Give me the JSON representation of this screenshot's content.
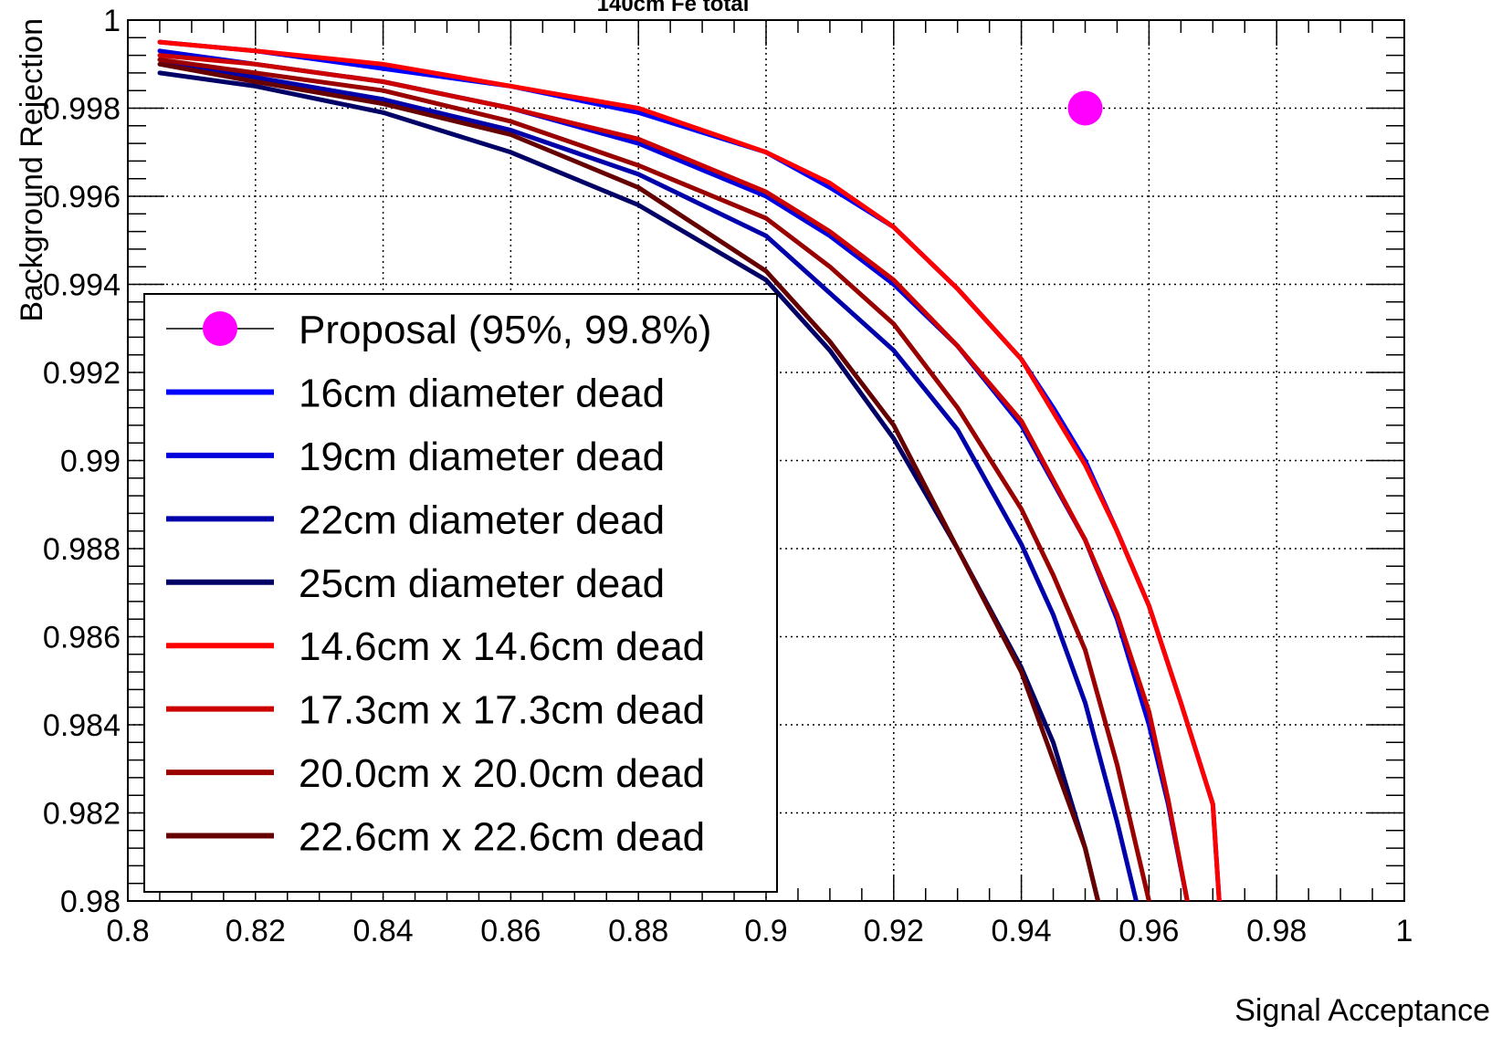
{
  "chart_data": {
    "type": "line",
    "title": "140cm Fe total",
    "xlabel": "Signal Acceptance",
    "ylabel": "Background Rejection",
    "xlim": [
      0.8,
      1.0
    ],
    "ylim": [
      0.98,
      1.0
    ],
    "grid": true,
    "legend_position": "bottom-left",
    "x_ticks": [
      {
        "value": 0.8,
        "label": "0.8"
      },
      {
        "value": 0.82,
        "label": "0.82"
      },
      {
        "value": 0.84,
        "label": "0.84"
      },
      {
        "value": 0.86,
        "label": "0.86"
      },
      {
        "value": 0.88,
        "label": "0.88"
      },
      {
        "value": 0.9,
        "label": "0.9"
      },
      {
        "value": 0.92,
        "label": "0.92"
      },
      {
        "value": 0.94,
        "label": "0.94"
      },
      {
        "value": 0.96,
        "label": "0.96"
      },
      {
        "value": 0.98,
        "label": "0.98"
      },
      {
        "value": 1.0,
        "label": "1"
      }
    ],
    "y_ticks": [
      {
        "value": 0.98,
        "label": "0.98"
      },
      {
        "value": 0.982,
        "label": "0.982"
      },
      {
        "value": 0.984,
        "label": "0.984"
      },
      {
        "value": 0.986,
        "label": "0.986"
      },
      {
        "value": 0.988,
        "label": "0.988"
      },
      {
        "value": 0.99,
        "label": "0.99"
      },
      {
        "value": 0.992,
        "label": "0.992"
      },
      {
        "value": 0.994,
        "label": "0.994"
      },
      {
        "value": 0.996,
        "label": "0.996"
      },
      {
        "value": 0.998,
        "label": "0.998"
      },
      {
        "value": 1.0,
        "label": "1"
      }
    ],
    "points": [
      {
        "name": "Proposal (95%, 99.8%)",
        "x": 0.95,
        "y": 0.998,
        "color": "#ff00ff"
      }
    ],
    "series": [
      {
        "name": "16cm diameter dead",
        "color": "#0000ff",
        "x": [
          0.805,
          0.82,
          0.84,
          0.86,
          0.88,
          0.9,
          0.91,
          0.92,
          0.93,
          0.94,
          0.945,
          0.95,
          0.955,
          0.96,
          0.965,
          0.97,
          0.971
        ],
        "y": [
          0.9995,
          0.9993,
          0.9989,
          0.9985,
          0.9979,
          0.997,
          0.9962,
          0.9953,
          0.9939,
          0.9923,
          0.9912,
          0.99,
          0.9884,
          0.9867,
          0.9845,
          0.9822,
          0.98
        ]
      },
      {
        "name": "19cm diameter dead",
        "color": "#0000dd",
        "x": [
          0.805,
          0.82,
          0.84,
          0.86,
          0.88,
          0.9,
          0.91,
          0.92,
          0.93,
          0.94,
          0.95,
          0.955,
          0.96,
          0.963,
          0.966
        ],
        "y": [
          0.9993,
          0.999,
          0.9986,
          0.998,
          0.9972,
          0.996,
          0.9951,
          0.994,
          0.9926,
          0.9908,
          0.9882,
          0.9864,
          0.984,
          0.9822,
          0.98
        ]
      },
      {
        "name": "22cm diameter dead",
        "color": "#0000aa",
        "x": [
          0.805,
          0.82,
          0.84,
          0.86,
          0.88,
          0.9,
          0.91,
          0.92,
          0.93,
          0.94,
          0.945,
          0.95,
          0.955,
          0.958
        ],
        "y": [
          0.9991,
          0.9987,
          0.9982,
          0.9975,
          0.9965,
          0.9951,
          0.9938,
          0.9925,
          0.9907,
          0.9881,
          0.9865,
          0.9845,
          0.9818,
          0.98
        ]
      },
      {
        "name": "25cm diameter dead",
        "color": "#000066",
        "x": [
          0.805,
          0.82,
          0.84,
          0.86,
          0.88,
          0.9,
          0.91,
          0.92,
          0.93,
          0.94,
          0.945,
          0.95,
          0.952
        ],
        "y": [
          0.9988,
          0.9985,
          0.9979,
          0.997,
          0.9958,
          0.9941,
          0.9925,
          0.9905,
          0.988,
          0.9853,
          0.9836,
          0.9812,
          0.98
        ]
      },
      {
        "name": "14.6cm x 14.6cm dead",
        "color": "#ff0000",
        "x": [
          0.805,
          0.82,
          0.84,
          0.86,
          0.88,
          0.9,
          0.91,
          0.92,
          0.93,
          0.94,
          0.945,
          0.95,
          0.955,
          0.96,
          0.965,
          0.97,
          0.971
        ],
        "y": [
          0.9995,
          0.9993,
          0.999,
          0.9985,
          0.998,
          0.997,
          0.9963,
          0.9953,
          0.9939,
          0.9923,
          0.9911,
          0.9899,
          0.9884,
          0.9867,
          0.9845,
          0.9822,
          0.98
        ]
      },
      {
        "name": "17.3cm x 17.3cm dead",
        "color": "#cc0000",
        "x": [
          0.805,
          0.82,
          0.84,
          0.86,
          0.88,
          0.9,
          0.91,
          0.92,
          0.93,
          0.94,
          0.95,
          0.955,
          0.96,
          0.963,
          0.966
        ],
        "y": [
          0.9992,
          0.999,
          0.9986,
          0.998,
          0.9973,
          0.9961,
          0.9952,
          0.9941,
          0.9926,
          0.9909,
          0.9882,
          0.9865,
          0.9843,
          0.9823,
          0.98
        ]
      },
      {
        "name": "20.0cm x 20.0cm dead",
        "color": "#990000",
        "x": [
          0.805,
          0.82,
          0.84,
          0.86,
          0.88,
          0.9,
          0.91,
          0.92,
          0.93,
          0.94,
          0.945,
          0.95,
          0.955,
          0.96
        ],
        "y": [
          0.9991,
          0.9988,
          0.9984,
          0.9977,
          0.9967,
          0.9955,
          0.9944,
          0.9931,
          0.9912,
          0.9889,
          0.9874,
          0.9857,
          0.9831,
          0.98
        ]
      },
      {
        "name": "22.6cm x 22.6cm dead",
        "color": "#660000",
        "x": [
          0.805,
          0.82,
          0.84,
          0.86,
          0.88,
          0.9,
          0.91,
          0.92,
          0.93,
          0.94,
          0.945,
          0.95,
          0.952
        ],
        "y": [
          0.999,
          0.9986,
          0.9981,
          0.9974,
          0.9962,
          0.9943,
          0.9927,
          0.9908,
          0.988,
          0.9852,
          0.9832,
          0.9812,
          0.98
        ]
      }
    ]
  }
}
